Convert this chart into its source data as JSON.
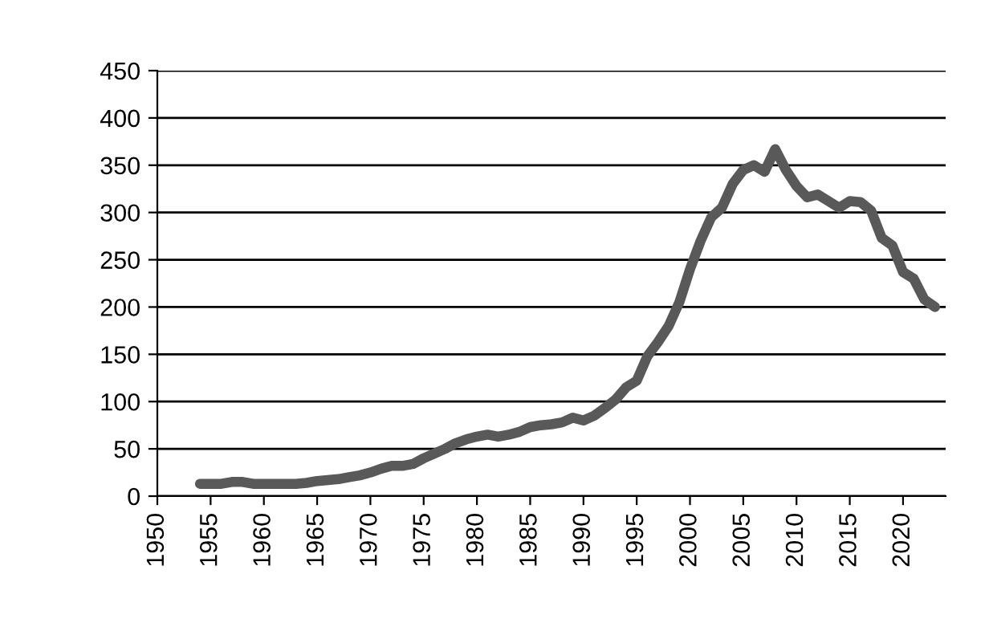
{
  "chart_data": {
    "type": "line",
    "x": [
      1954,
      1955,
      1956,
      1957,
      1958,
      1959,
      1960,
      1961,
      1962,
      1963,
      1964,
      1965,
      1966,
      1967,
      1968,
      1969,
      1970,
      1971,
      1972,
      1973,
      1974,
      1975,
      1976,
      1977,
      1978,
      1979,
      1980,
      1981,
      1982,
      1983,
      1984,
      1985,
      1986,
      1987,
      1988,
      1989,
      1990,
      1991,
      1992,
      1993,
      1994,
      1995,
      1996,
      1997,
      1998,
      1999,
      2000,
      2001,
      2002,
      2003,
      2004,
      2005,
      2006,
      2007,
      2008,
      2009,
      2010,
      2011,
      2012,
      2013,
      2014,
      2015,
      2016,
      2017,
      2018,
      2019,
      2020,
      2021,
      2022,
      2023
    ],
    "series": [
      {
        "color": "#595959",
        "values": [
          13,
          13,
          13,
          15,
          15,
          13,
          13,
          13,
          13,
          13,
          14,
          16,
          17,
          18,
          20,
          22,
          25,
          29,
          32,
          32,
          34,
          40,
          45,
          50,
          56,
          60,
          63,
          65,
          63,
          65,
          68,
          73,
          75,
          76,
          78,
          83,
          80,
          85,
          93,
          102,
          115,
          122,
          148,
          163,
          180,
          205,
          240,
          270,
          295,
          305,
          330,
          345,
          350,
          343,
          367,
          345,
          328,
          316,
          319,
          312,
          305,
          312,
          311,
          302,
          273,
          265,
          237,
          230,
          208,
          200
        ]
      }
    ],
    "xlim": [
      1950,
      2024
    ],
    "xticks": [
      1950,
      1955,
      1960,
      1965,
      1970,
      1975,
      1980,
      1985,
      1990,
      1995,
      2000,
      2005,
      2010,
      2015,
      2020
    ],
    "ylim": [
      0,
      450
    ],
    "yticks": [
      0,
      50,
      100,
      150,
      200,
      250,
      300,
      350,
      400,
      450
    ],
    "grid": "y",
    "legend": false,
    "marker": "none",
    "line_style": "solid"
  }
}
